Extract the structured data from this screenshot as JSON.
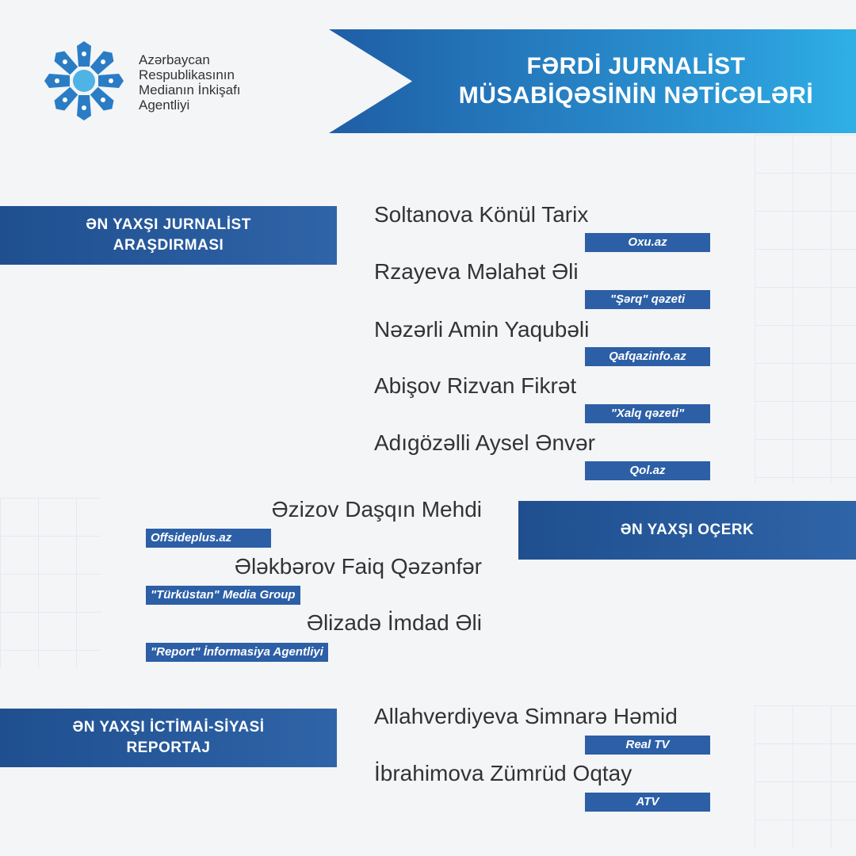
{
  "logo": {
    "lines": [
      "Azərbaycan",
      "Respublikasının",
      "Medianın İnkişafı",
      "Agentliyi"
    ]
  },
  "header": {
    "title_line1": "FƏRDİ JURNALİST",
    "title_line2": "MÜSABİQƏSİNİN NƏTİCƏLƏRİ"
  },
  "categories": [
    {
      "title_line1": "ƏN YAXŞI JURNALİST",
      "title_line2": "ARAŞDIRMASI",
      "winners": [
        {
          "name": "Soltanova Könül Tarix",
          "outlet": "Oxu.az"
        },
        {
          "name": "Rzayeva Məlahət Əli",
          "outlet": "\"Şərq\" qəzeti"
        },
        {
          "name": "Nəzərli Amin Yaqubəli",
          "outlet": "Qafqazinfo.az"
        },
        {
          "name": "Abişov Rizvan Fikrət",
          "outlet": "\"Xalq qəzeti\""
        },
        {
          "name": "Adıgözəlli Aysel Ənvər",
          "outlet": "Qol.az"
        }
      ]
    },
    {
      "title_line1": "ƏN YAXŞI OÇERK",
      "title_line2": "",
      "winners": [
        {
          "name": "Əzizov Daşqın Mehdi",
          "outlet": "Offsideplus.az"
        },
        {
          "name": "Ələkbərov Faiq Qəzənfər",
          "outlet": "\"Türküstan\" Media Group"
        },
        {
          "name": "Əlizadə İmdad Əli",
          "outlet": "\"Report\" İnformasiya Agentliyi"
        }
      ]
    },
    {
      "title_line1": "ƏN YAXŞI İCTİMAİ-SİYASİ",
      "title_line2": "REPORTAJ",
      "winners": [
        {
          "name": "Allahverdiyeva Simnarə Həmid",
          "outlet": "Real TV"
        },
        {
          "name": "İbrahimova Zümrüd Oqtay",
          "outlet": "ATV"
        }
      ]
    }
  ],
  "colors": {
    "accent": "#2c5fa6",
    "banner_light": "#2eb0e6",
    "text": "#333333"
  }
}
